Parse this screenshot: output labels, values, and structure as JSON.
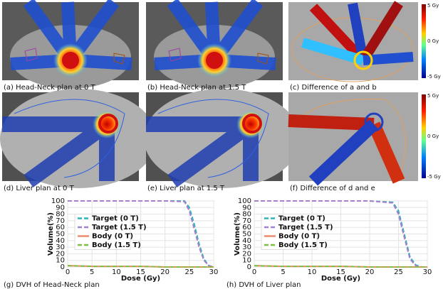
{
  "captions": [
    "(a) Head-Neck plan at 0 T",
    "(b) Head-Neck plan at 1.5 T",
    "(c) Difference of a and b",
    "(d) Liver plan at 0 T",
    "(e) Liver plan at 1.5 T",
    "(f) Difference of d and e",
    "(g) DVH of Head-Neck plan",
    "(h) DVH of Liver plan"
  ],
  "colorbars": [
    [
      "5 Gy",
      "0 Gy",
      "-5 Gy"
    ],
    [
      "5 Gy",
      "0 Gy",
      "-5 Gy"
    ]
  ],
  "chart_data": [
    {
      "type": "line",
      "x_label": "Dose (Gy)",
      "y_label": "Volume(%)",
      "x": [
        0,
        5,
        10,
        15,
        20,
        24,
        25,
        26,
        27,
        28,
        29,
        30
      ],
      "series": [
        {
          "name": "Target (0 T)",
          "color": "#2bb5b8",
          "dash": "6,3",
          "values": [
            100,
            100,
            100,
            100,
            100,
            100,
            90,
            65,
            35,
            12,
            2,
            0
          ]
        },
        {
          "name": "Target (1.5 T)",
          "color": "#a77fd0",
          "dash": "6,3",
          "values": [
            100,
            100,
            100,
            100,
            100,
            99,
            85,
            58,
            30,
            10,
            2,
            0
          ]
        },
        {
          "name": "Body (0 T)",
          "color": "#f08a6c",
          "dash": "none",
          "values": [
            2,
            1,
            1,
            1,
            0,
            0,
            0,
            0,
            0,
            0,
            0,
            0
          ]
        },
        {
          "name": "Body (1.5 T)",
          "color": "#7fbf3f",
          "dash": "6,3",
          "values": [
            2,
            1,
            1,
            1,
            0,
            0,
            0,
            0,
            0,
            0,
            0,
            0
          ]
        }
      ],
      "xlim": [
        0,
        30
      ],
      "ylim": [
        0,
        100
      ],
      "xticks": [
        0,
        5,
        10,
        15,
        20,
        25,
        30
      ],
      "yticks": [
        0,
        10,
        20,
        30,
        40,
        50,
        60,
        70,
        80,
        90,
        100
      ],
      "grid": true,
      "legend": "center-left"
    },
    {
      "type": "line",
      "x_label": "Dose (Gy)",
      "y_label": "Volume(%)",
      "x": [
        0,
        5,
        10,
        15,
        20,
        24,
        25,
        26,
        27,
        28,
        29,
        30
      ],
      "series": [
        {
          "name": "Target (0 T)",
          "color": "#2bb5b8",
          "dash": "6,3",
          "values": [
            100,
            100,
            100,
            100,
            100,
            98,
            85,
            50,
            15,
            3,
            0,
            0
          ]
        },
        {
          "name": "Target (1.5 T)",
          "color": "#a77fd0",
          "dash": "6,3",
          "values": [
            100,
            100,
            100,
            100,
            100,
            97,
            80,
            45,
            12,
            2,
            0,
            0
          ]
        },
        {
          "name": "Body (0 T)",
          "color": "#f08a6c",
          "dash": "none",
          "values": [
            2,
            1,
            1,
            1,
            0,
            0,
            0,
            0,
            0,
            0,
            0,
            0
          ]
        },
        {
          "name": "Body (1.5 T)",
          "color": "#7fbf3f",
          "dash": "6,3",
          "values": [
            2,
            1,
            1,
            1,
            0,
            0,
            0,
            0,
            0,
            0,
            0,
            0
          ]
        }
      ],
      "xlim": [
        0,
        30
      ],
      "ylim": [
        0,
        100
      ],
      "xticks": [
        0,
        5,
        10,
        15,
        20,
        25,
        30
      ],
      "yticks": [
        0,
        10,
        20,
        30,
        40,
        50,
        60,
        70,
        80,
        90,
        100
      ],
      "grid": true,
      "legend": "center-left"
    }
  ]
}
